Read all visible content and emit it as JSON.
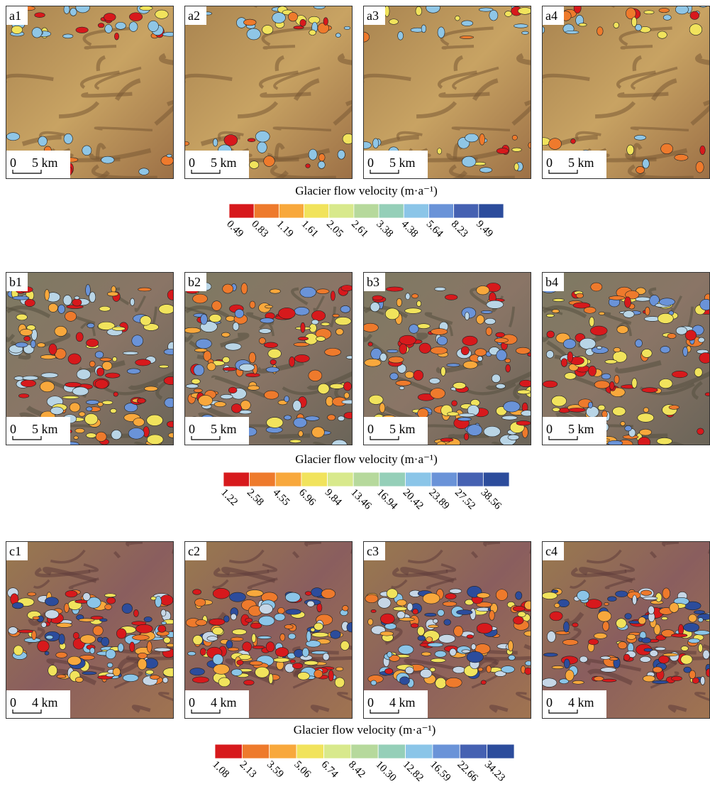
{
  "rows": [
    {
      "panels": [
        "a1",
        "a2",
        "a3",
        "a4"
      ],
      "scale_bar": {
        "start": "0",
        "label": "5 km"
      },
      "colorbar": {
        "title": "Glacier flow velocity (m·a⁻¹)",
        "colors": [
          "#d7191c",
          "#ee7a2c",
          "#f8a83c",
          "#f1e35c",
          "#d8e98c",
          "#b6d99c",
          "#95cfb8",
          "#8bc5e8",
          "#6a93d8",
          "#4561b2",
          "#2c4c9c"
        ],
        "ticks": [
          "0.49",
          "0.83",
          "1.19",
          "1.61",
          "2.05",
          "2.61",
          "3.38",
          "4.38",
          "5.64",
          "8.23",
          "9.49"
        ]
      }
    },
    {
      "panels": [
        "b1",
        "b2",
        "b3",
        "b4"
      ],
      "scale_bar": {
        "start": "0",
        "label": "5 km"
      },
      "colorbar": {
        "title": "Glacier flow velocity (m·a⁻¹)",
        "colors": [
          "#d7191c",
          "#ee7a2c",
          "#f8a83c",
          "#f1e35c",
          "#d8e98c",
          "#b6d99c",
          "#95cfb8",
          "#8bc5e8",
          "#6a93d8",
          "#4561b2",
          "#2c4c9c"
        ],
        "ticks": [
          "1.22",
          "2.58",
          "4.55",
          "6.96",
          "9.84",
          "13.46",
          "16.94",
          "20.42",
          "23.89",
          "27.52",
          "38.56"
        ]
      }
    },
    {
      "panels": [
        "c1",
        "c2",
        "c3",
        "c4"
      ],
      "scale_bar": {
        "start": "0",
        "label": "4 km"
      },
      "colorbar": {
        "title": "Glacier flow velocity (m·a⁻¹)",
        "colors": [
          "#d7191c",
          "#ee7a2c",
          "#f8a83c",
          "#f1e35c",
          "#d8e98c",
          "#b6d99c",
          "#95cfb8",
          "#8bc5e8",
          "#6a93d8",
          "#4561b2",
          "#2c4c9c"
        ],
        "ticks": [
          "1.08",
          "2.13",
          "3.59",
          "5.06",
          "6.74",
          "8.42",
          "10.30",
          "12.82",
          "16.59",
          "22.66",
          "34.23"
        ]
      }
    }
  ]
}
